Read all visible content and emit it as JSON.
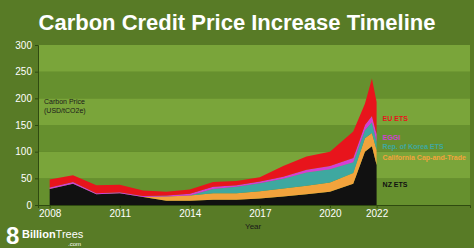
{
  "chart_data": {
    "type": "area",
    "stacked": true,
    "title": "Carbon Credit Price Increase Timeline",
    "x_label": "Year",
    "y_label": "Carbon Price (USD/tCO2e)",
    "x": [
      2008,
      2009,
      2010,
      2011,
      2012,
      2013,
      2014,
      2015,
      2016,
      2017,
      2018,
      2019,
      2020,
      2021,
      2021.5,
      2021.8,
      2022
    ],
    "xlim": [
      2007.5,
      2026
    ],
    "xticks": [
      2008,
      2011,
      2014,
      2017,
      2020,
      2022
    ],
    "ylim": [
      0,
      300
    ],
    "yticks": [
      0,
      50,
      100,
      150,
      200,
      250,
      300
    ],
    "grid": true,
    "legend": "right",
    "series": [
      {
        "name": "NZ ETS",
        "color": "#111111",
        "values": [
          30,
          40,
          20,
          22,
          15,
          8,
          8,
          10,
          10,
          12,
          16,
          20,
          25,
          40,
          100,
          110,
          75
        ]
      },
      {
        "name": "California Cap-and-Trade",
        "color": "#f2a33c",
        "values": [
          0,
          0,
          0,
          0,
          0,
          8,
          10,
          12,
          12,
          14,
          15,
          16,
          17,
          20,
          25,
          25,
          28
        ]
      },
      {
        "name": "Rep. of Korea ETS",
        "color": "#3ea8a0",
        "values": [
          0,
          0,
          0,
          0,
          0,
          0,
          0,
          8,
          12,
          15,
          18,
          25,
          25,
          20,
          15,
          20,
          15
        ]
      },
      {
        "name": "EGGI",
        "color": "#d43fd6",
        "values": [
          3,
          3,
          2,
          2,
          2,
          2,
          3,
          4,
          3,
          3,
          4,
          5,
          6,
          8,
          10,
          12,
          15
        ]
      },
      {
        "name": "EU ETS",
        "color": "#e8141c",
        "values": [
          15,
          13,
          15,
          14,
          10,
          7,
          8,
          9,
          8,
          8,
          20,
          25,
          27,
          50,
          40,
          70,
          60
        ]
      }
    ],
    "logo": [
      "8",
      "Billion",
      "Trees",
      ".com"
    ]
  }
}
